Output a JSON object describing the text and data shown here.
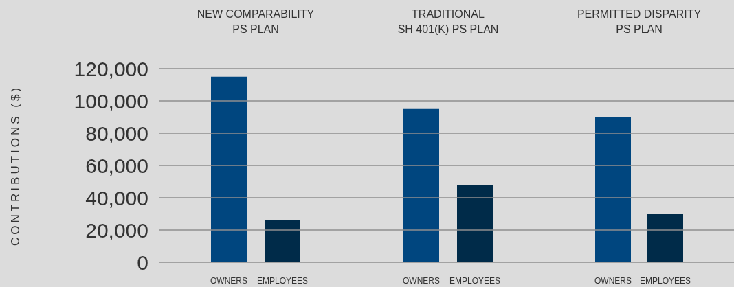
{
  "chart_data": [
    {
      "type": "bar",
      "title": "NEW COMPARABILITY\nPS PLAN",
      "ylabel": "CONTRIBUTIONS ($)",
      "categories": [
        "OWNERS",
        "EMPLOYEES"
      ],
      "values": [
        115000,
        26000
      ],
      "colors": [
        "#00467f",
        "#002b49"
      ],
      "ylim": [
        0,
        120000
      ],
      "yticks": [
        0,
        {
          "value": 20000,
          "label": "20,000"
        },
        {
          "value": 40000,
          "label": "40,000"
        },
        {
          "value": 60000,
          "label": "60,000"
        },
        {
          "value": 80000,
          "label": "80,000"
        },
        {
          "value": 100000,
          "label": "100,000"
        },
        {
          "value": 120000,
          "label": "120,000"
        }
      ],
      "grid": "y"
    },
    {
      "type": "bar",
      "title": "TRADITIONAL\nSH 401(K) PS PLAN",
      "categories": [
        "OWNERS",
        "EMPLOYEES"
      ],
      "values": [
        95000,
        48000
      ],
      "colors": [
        "#00467f",
        "#002b49"
      ],
      "ylim": [
        0,
        120000
      ],
      "yticks": [
        0,
        20000,
        40000,
        60000,
        80000,
        100000,
        120000
      ],
      "grid": "y",
      "tick_labels": "x"
    },
    {
      "type": "bar",
      "title": "PERMITTED DISPARITY\nPS PLAN",
      "categories": [
        "OWNERS",
        "EMPLOYEES"
      ],
      "values": [
        90000,
        30000
      ],
      "colors": [
        "#00467f",
        "#002b49"
      ],
      "ylim": [
        0,
        120000
      ],
      "yticks": [
        0,
        20000,
        40000,
        60000,
        80000,
        100000,
        120000
      ],
      "grid": "y",
      "tick_labels": "x"
    }
  ]
}
